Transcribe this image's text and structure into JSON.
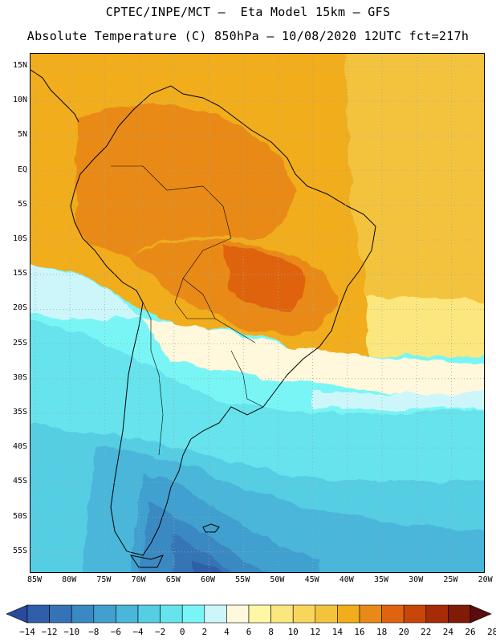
{
  "header": {
    "line1": "CPTEC/INPE/MCT –  Eta Model 15km – GFS",
    "line2": "Absolute Temperature (C) 850hPa – 10/08/2020 12UTC fct=217h"
  },
  "map": {
    "lat_ticks": [
      "15N",
      "10N",
      "5N",
      "EQ",
      "5S",
      "10S",
      "15S",
      "20S",
      "25S",
      "30S",
      "35S",
      "40S",
      "45S",
      "50S",
      "55S"
    ],
    "lon_ticks": [
      "85W",
      "80W",
      "75W",
      "70W",
      "65W",
      "60W",
      "55W",
      "50W",
      "45W",
      "40W",
      "35W",
      "30W",
      "25W",
      "20W"
    ]
  },
  "legend": {
    "colors": [
      "#2a4a9c",
      "#2e5fa8",
      "#3474b6",
      "#3a89c2",
      "#41a0cf",
      "#49b6da",
      "#55cde3",
      "#66e3ec",
      "#7af5f5",
      "#cdf6fb",
      "#fff8dc",
      "#fff7a4",
      "#fbe77e",
      "#f8d65c",
      "#f4c33c",
      "#f1ad1b",
      "#e98a18",
      "#df6410",
      "#c8460a",
      "#a52c07",
      "#821b06",
      "#5a0c10"
    ],
    "labels": [
      "-14",
      "-12",
      "-10",
      "-8",
      "-6",
      "-4",
      "-2",
      "0",
      "2",
      "4",
      "6",
      "8",
      "10",
      "12",
      "14",
      "16",
      "18",
      "20",
      "22",
      "24",
      "26",
      "28"
    ]
  }
}
